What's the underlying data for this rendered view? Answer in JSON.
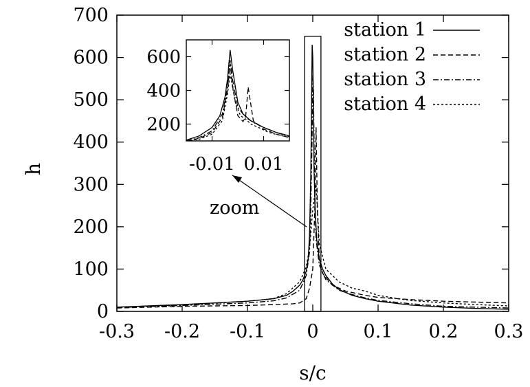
{
  "chart_data": [
    {
      "type": "line",
      "xlabel": "s/c",
      "ylabel": "h",
      "xlim": [
        -0.3,
        0.3
      ],
      "ylim": [
        0,
        700
      ],
      "xticks": [
        -0.3,
        -0.2,
        -0.1,
        0,
        0.1,
        0.2,
        0.3
      ],
      "yticks": [
        0,
        100,
        200,
        300,
        400,
        500,
        600,
        700
      ],
      "xtick_labels": [
        "-0.3",
        "-0.2",
        "-0.1",
        "0",
        "0.1",
        "0.2",
        "0.3"
      ],
      "ytick_labels": [
        "0",
        "100",
        "200",
        "300",
        "400",
        "500",
        "600",
        "700"
      ],
      "legend_position": "top-right",
      "series": [
        {
          "name": "station 1",
          "dash": "none",
          "x": [
            -0.3,
            -0.25,
            -0.2,
            -0.15,
            -0.1,
            -0.08,
            -0.06,
            -0.04,
            -0.03,
            -0.02,
            -0.015,
            -0.01,
            -0.007,
            -0.005,
            -0.003,
            -0.002,
            -0.001,
            0,
            0.001,
            0.002,
            0.004,
            0.006,
            0.01,
            0.015,
            0.02,
            0.03,
            0.04,
            0.06,
            0.08,
            0.1,
            0.15,
            0.2,
            0.25,
            0.3
          ],
          "y": [
            10,
            13,
            16,
            20,
            24,
            27,
            30,
            38,
            48,
            62,
            75,
            95,
            125,
            180,
            320,
            470,
            630,
            600,
            480,
            330,
            230,
            170,
            125,
            100,
            85,
            65,
            52,
            38,
            30,
            24,
            15,
            10,
            7,
            5
          ]
        },
        {
          "name": "station 2",
          "dash": "7,4",
          "x": [
            -0.3,
            -0.2,
            -0.1,
            -0.06,
            -0.03,
            -0.02,
            -0.01,
            -0.005,
            0,
            0.003,
            0.005,
            0.007,
            0.01,
            0.015,
            0.02,
            0.03,
            0.05,
            0.08,
            0.1,
            0.15,
            0.2,
            0.25,
            0.3
          ],
          "y": [
            8,
            12,
            14,
            16,
            18,
            20,
            30,
            55,
            100,
            240,
            435,
            240,
            120,
            90,
            80,
            62,
            48,
            38,
            33,
            28,
            24,
            22,
            20
          ]
        },
        {
          "name": "station 3",
          "dash": "8,3,2,3",
          "x": [
            -0.3,
            -0.2,
            -0.1,
            -0.06,
            -0.04,
            -0.02,
            -0.01,
            -0.005,
            -0.003,
            -0.001,
            0,
            0.001,
            0.003,
            0.005,
            0.01,
            0.02,
            0.04,
            0.06,
            0.08,
            0.1,
            0.15,
            0.2,
            0.3
          ],
          "y": [
            9,
            14,
            20,
            25,
            32,
            50,
            85,
            140,
            240,
            420,
            560,
            520,
            260,
            170,
            110,
            75,
            50,
            40,
            32,
            26,
            18,
            12,
            8
          ]
        },
        {
          "name": "station 4",
          "dash": "3,3",
          "x": [
            -0.3,
            -0.2,
            -0.1,
            -0.06,
            -0.04,
            -0.02,
            -0.01,
            -0.005,
            0,
            0.005,
            0.01,
            0.02,
            0.04,
            0.06,
            0.08,
            0.1,
            0.13,
            0.15,
            0.2,
            0.25,
            0.3
          ],
          "y": [
            10,
            15,
            24,
            30,
            42,
            70,
            105,
            150,
            240,
            300,
            160,
            100,
            70,
            55,
            48,
            38,
            30,
            26,
            20,
            16,
            13
          ]
        }
      ],
      "annotations": [
        {
          "text": "zoom",
          "x": -0.02,
          "y": 250
        }
      ],
      "zoom_box": {
        "x": [
          -0.0125,
          0.0125
        ],
        "y": [
          0,
          650
        ]
      }
    },
    {
      "type": "line",
      "role": "inset",
      "xlim": [
        -0.02,
        0.02
      ],
      "ylim": [
        100,
        700
      ],
      "xticks": [
        -0.01,
        0.01
      ],
      "yticks": [
        200,
        400,
        600
      ],
      "xtick_labels": [
        "-0.01",
        "0.01"
      ],
      "ytick_labels": [
        "200",
        "400",
        "600"
      ],
      "series": [
        {
          "name": "station 1",
          "dash": "none",
          "x": [
            -0.02,
            -0.015,
            -0.01,
            -0.007,
            -0.005,
            -0.004,
            -0.003,
            -0.002,
            0,
            0.002,
            0.005,
            0.01,
            0.015,
            0.02
          ],
          "y": [
            105,
            130,
            180,
            250,
            360,
            470,
            640,
            520,
            330,
            260,
            220,
            180,
            150,
            130
          ]
        },
        {
          "name": "station 2",
          "dash": "7,4",
          "x": [
            -0.02,
            -0.015,
            -0.01,
            -0.006,
            -0.004,
            -0.003,
            -0.002,
            0,
            0.002,
            0.003,
            0.004,
            0.006,
            0.01,
            0.015,
            0.02
          ],
          "y": [
            100,
            115,
            150,
            240,
            400,
            560,
            420,
            250,
            215,
            240,
            420,
            220,
            170,
            140,
            120
          ]
        },
        {
          "name": "station 3",
          "dash": "8,3,2,3",
          "x": [
            -0.02,
            -0.015,
            -0.01,
            -0.006,
            -0.004,
            -0.003,
            -0.002,
            0,
            0.003,
            0.006,
            0.01,
            0.015,
            0.02
          ],
          "y": [
            100,
            120,
            160,
            260,
            420,
            580,
            460,
            300,
            240,
            210,
            180,
            150,
            125
          ]
        },
        {
          "name": "station 4",
          "dash": "3,3",
          "x": [
            -0.02,
            -0.015,
            -0.01,
            -0.006,
            -0.004,
            -0.003,
            -0.001,
            0.001,
            0.003,
            0.005,
            0.008,
            0.012,
            0.02
          ],
          "y": [
            100,
            110,
            140,
            220,
            380,
            500,
            330,
            250,
            230,
            200,
            180,
            150,
            120
          ]
        }
      ]
    }
  ]
}
